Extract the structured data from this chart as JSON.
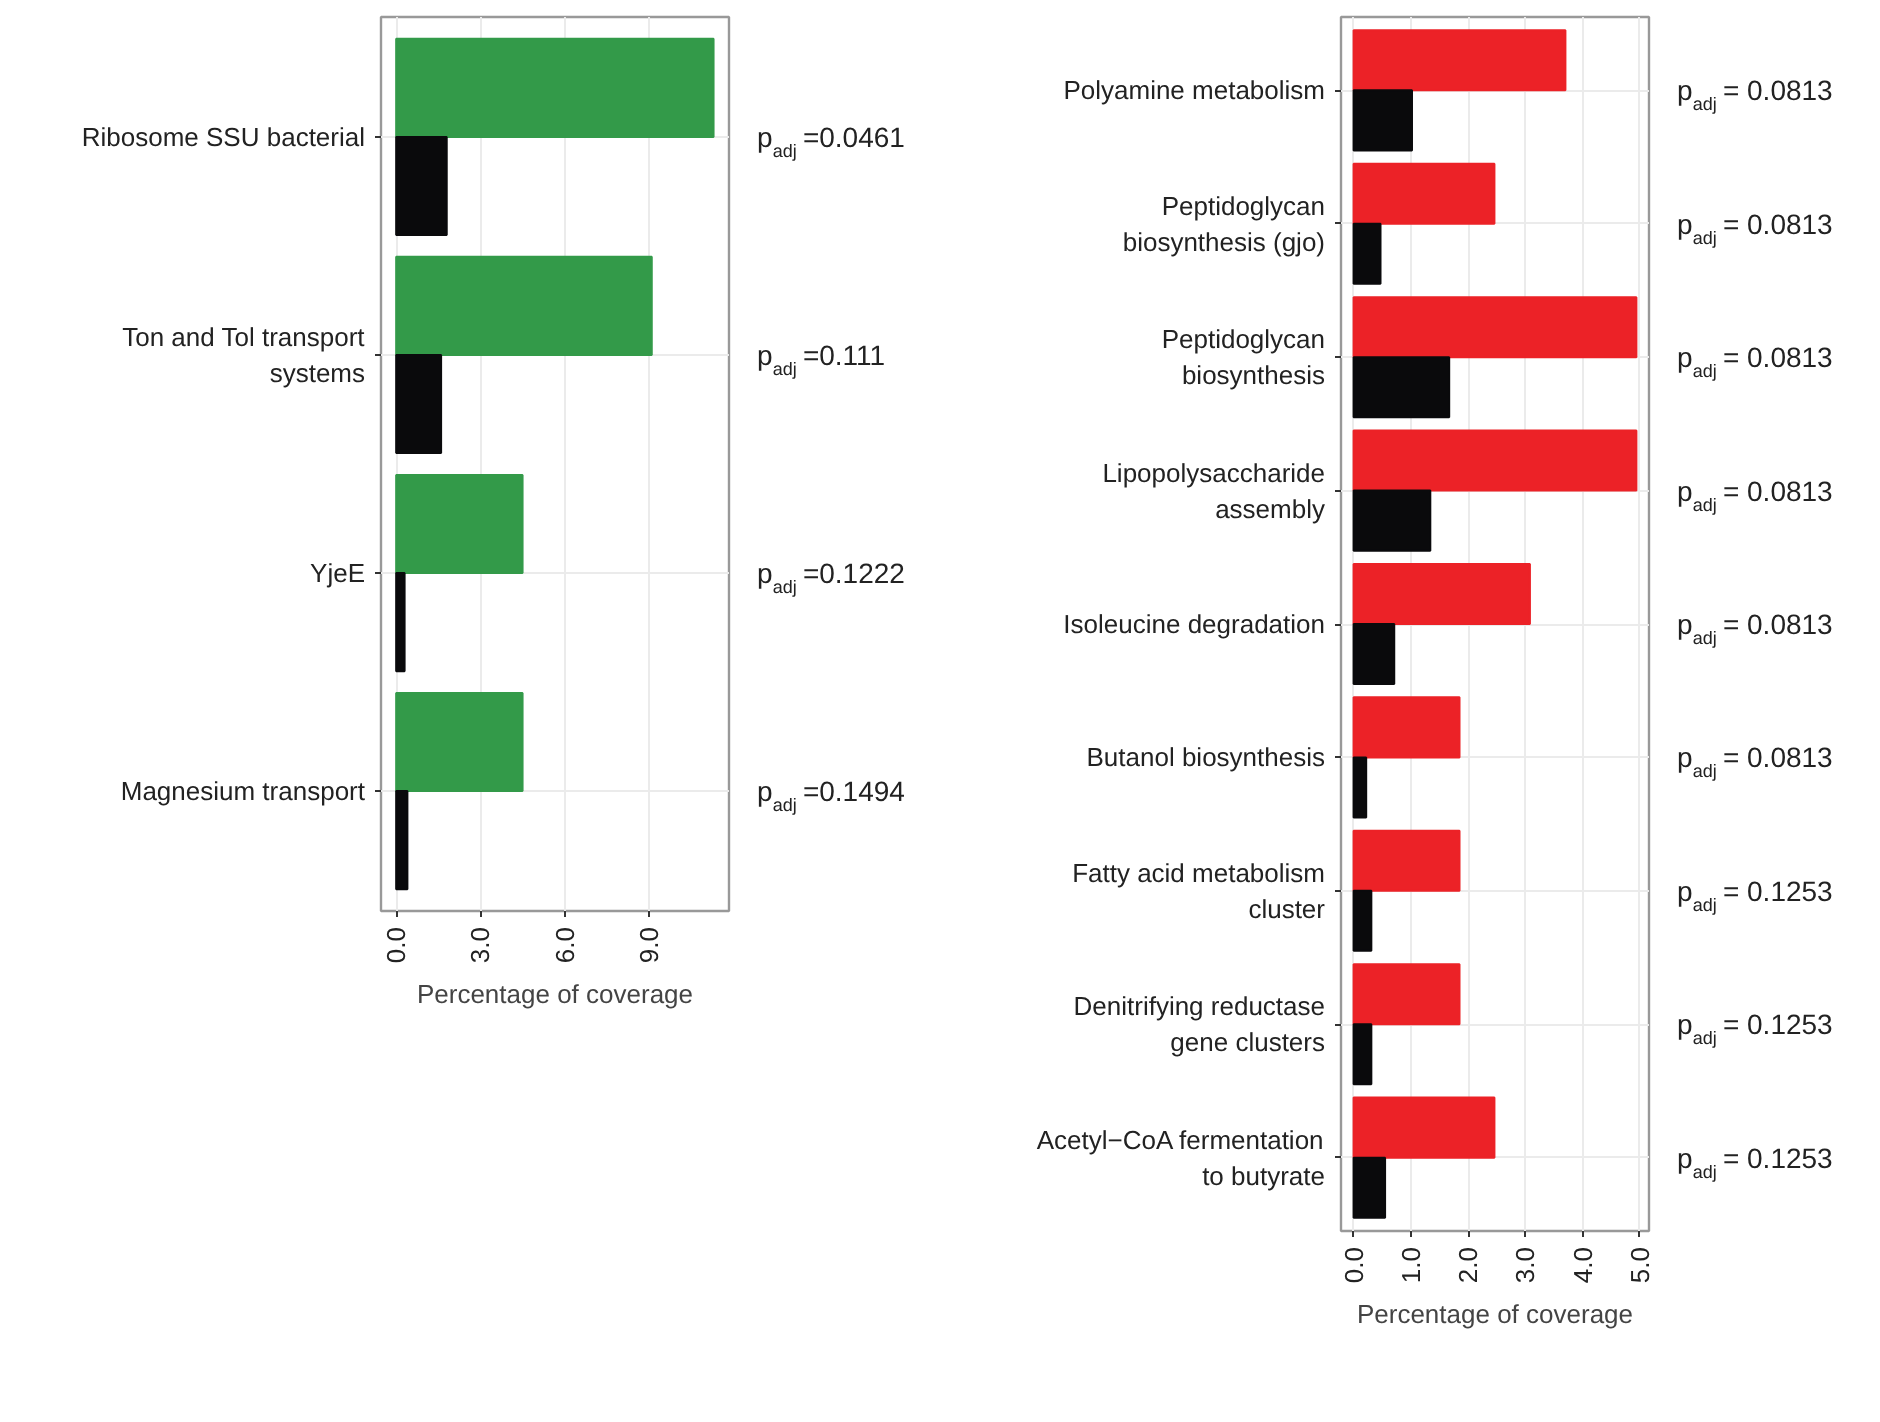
{
  "chart_data": [
    {
      "type": "bar",
      "orientation": "horizontal",
      "xlabel": "Percentage of coverage",
      "categories": [
        "Ribosome SSU bacterial",
        "Ton and Tol transport\nsystems",
        "YjeE",
        "Magnesium transport"
      ],
      "series": [
        {
          "color": "#339a49",
          "values": [
            11.3,
            9.1,
            4.5,
            4.5
          ]
        },
        {
          "color": "#0a0a0c",
          "values": [
            1.8,
            1.6,
            0.3,
            0.4
          ]
        }
      ],
      "xlim": [
        -0.54,
        11.85
      ],
      "xticks": [
        {
          "value": 0,
          "label": "0.0"
        },
        {
          "value": 3,
          "label": "3.0"
        },
        {
          "value": 6,
          "label": "6.0"
        },
        {
          "value": 9,
          "label": "9.0"
        }
      ],
      "annotations": [
        "p$_{adj}$=0.0461",
        "p$_{adj}$=0.111",
        "p$_{adj}$=0.1222",
        "p$_{adj}$=0.1494"
      ],
      "grid": true
    },
    {
      "type": "bar",
      "orientation": "horizontal",
      "xlabel": "Percentage of coverage",
      "categories": [
        "Polyamine metabolism",
        "Peptidoglycan\nbiosynthesis (gjo)",
        "Peptidoglycan\nbiosynthesis",
        "Lipopolysaccharide\nassembly",
        "Isoleucine degradation",
        "Butanol biosynthesis",
        "Fatty acid metabolism\ncluster",
        "Denitrifying reductase\ngene clusters",
        "Acetyl−CoA fermentation\nto butyrate"
      ],
      "series": [
        {
          "color": "#ec2227",
          "values": [
            3.7,
            2.46,
            4.94,
            4.94,
            3.08,
            1.85,
            1.85,
            1.85,
            2.46
          ]
        },
        {
          "color": "#0a0a0c",
          "values": [
            1.02,
            0.47,
            1.67,
            1.34,
            0.71,
            0.22,
            0.31,
            0.31,
            0.55
          ]
        }
      ],
      "xlim": [
        -0.22,
        5.16
      ],
      "xticks": [
        {
          "value": 0,
          "label": "0.0"
        },
        {
          "value": 1,
          "label": "1.0"
        },
        {
          "value": 2,
          "label": "2.0"
        },
        {
          "value": 3,
          "label": "3.0"
        },
        {
          "value": 4,
          "label": "4.0"
        },
        {
          "value": 5,
          "label": "5.0"
        }
      ],
      "annotations": [
        "p$_{adj}$= 0.0813",
        "p$_{adj}$= 0.0813",
        "p$_{adj}$= 0.0813",
        "p$_{adj}$= 0.0813",
        "p$_{adj}$= 0.0813",
        "p$_{adj}$= 0.0813",
        "p$_{adj}$= 0.1253",
        "p$_{adj}$= 0.1253",
        "p$_{adj}$= 0.1253"
      ],
      "grid": true
    }
  ]
}
